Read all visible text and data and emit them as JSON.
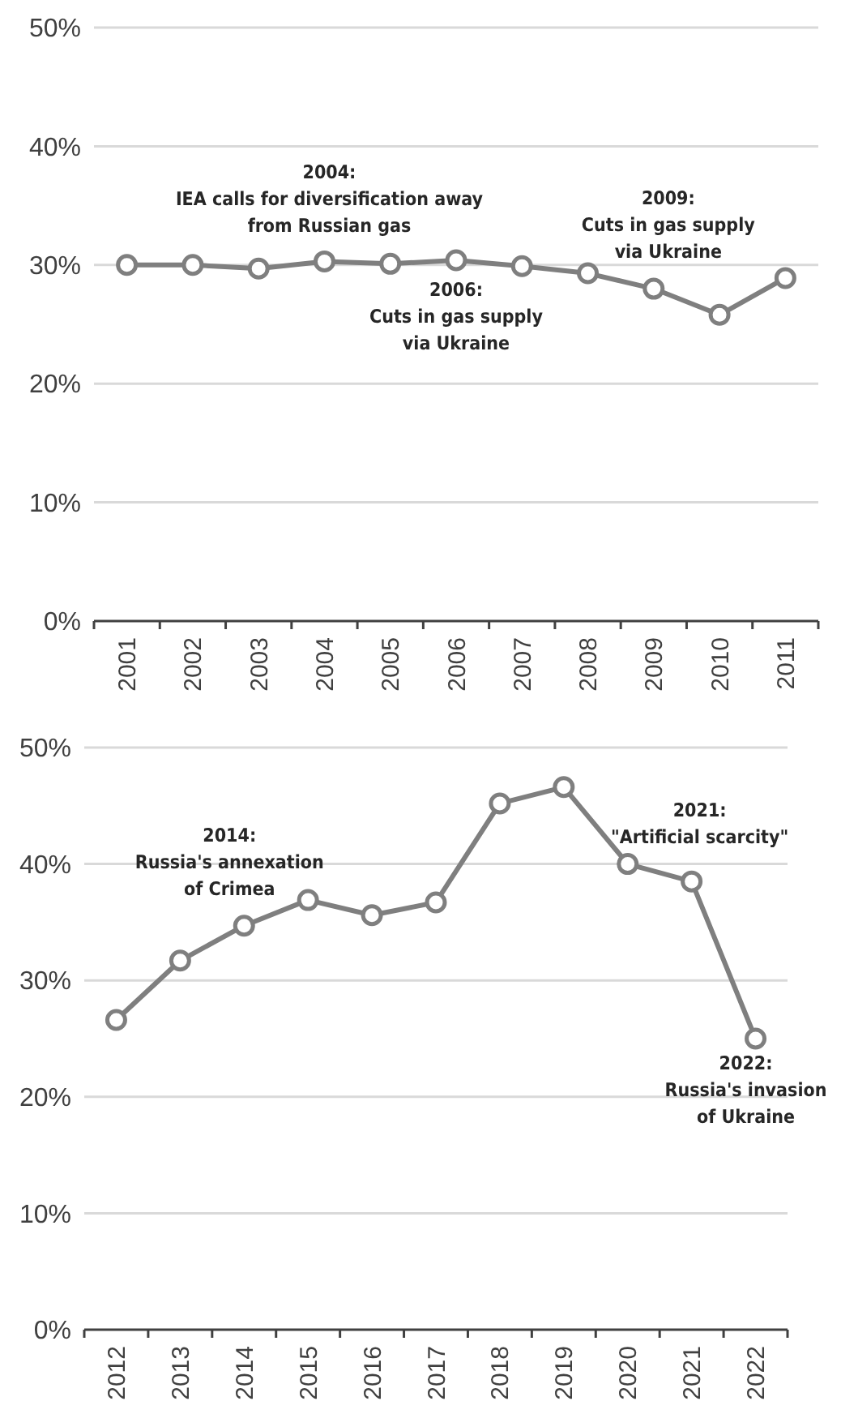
{
  "chart_data": [
    {
      "type": "line",
      "categories": [
        "2001",
        "2002",
        "2003",
        "2004",
        "2005",
        "2006",
        "2007",
        "2008",
        "2009",
        "2010",
        "2011"
      ],
      "series": [
        {
          "color": "#7f7f7f",
          "values": [
            30,
            30,
            29.7,
            30.3,
            30.1,
            30.4,
            29.9,
            29.3,
            28,
            25.8,
            28.9
          ]
        }
      ],
      "ylim": [
        0,
        50
      ],
      "yticks": [
        {
          "value": 0,
          "label": "0%"
        },
        {
          "value": 10,
          "label": "10%"
        },
        {
          "value": 20,
          "label": "20%"
        },
        {
          "value": 30,
          "label": "30%"
        },
        {
          "value": 40,
          "label": "40%"
        },
        {
          "value": 50,
          "label": "50%"
        }
      ],
      "grid": "y",
      "marker": "circle",
      "line_style": "solid",
      "annotations": [
        {
          "text": "2004:\nIEA calls for diversification away\nfrom Russian gas",
          "x": "2004",
          "y": 30.3
        },
        {
          "text": "2006:\nCuts in gas supply\nvia Ukraine",
          "x": "2006",
          "y": 30.4
        },
        {
          "text": "2009:\nCuts in gas supply\nvia Ukraine",
          "x": "2009",
          "y": 28
        }
      ]
    },
    {
      "type": "line",
      "categories": [
        "2012",
        "2013",
        "2014",
        "2015",
        "2016",
        "2017",
        "2018",
        "2019",
        "2020",
        "2021",
        "2022"
      ],
      "series": [
        {
          "color": "#7f7f7f",
          "values": [
            26.6,
            31.7,
            34.7,
            36.9,
            35.6,
            36.7,
            45.2,
            46.6,
            40,
            38.5,
            25
          ]
        }
      ],
      "ylim": [
        0,
        50
      ],
      "yticks": [
        {
          "value": 0,
          "label": "0%"
        },
        {
          "value": 10,
          "label": "10%"
        },
        {
          "value": 20,
          "label": "20%"
        },
        {
          "value": 30,
          "label": "30%"
        },
        {
          "value": 40,
          "label": "40%"
        },
        {
          "value": 50,
          "label": "50%"
        }
      ],
      "grid": "y",
      "marker": "circle",
      "line_style": "solid",
      "annotations": [
        {
          "text": "2014:\nRussia's annexation\nof Crimea",
          "x": "2014",
          "y": 34.7
        },
        {
          "text": "2021:\n\"Artificial scarcity\"",
          "x": "2021",
          "y": 38.5
        },
        {
          "text": "2022:\nRussia's invasion\nof Ukraine",
          "x": "2022",
          "y": 25
        }
      ]
    }
  ]
}
